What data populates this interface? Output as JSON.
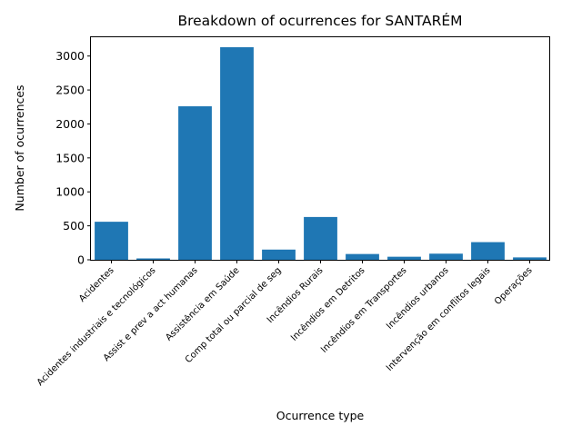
{
  "chart_data": {
    "type": "bar",
    "title": "Breakdown of ocurrences for SANTARÉM",
    "xlabel": "Ocurrence type",
    "ylabel": "Number of ocurrences",
    "categories": [
      "Acidentes",
      "Acidentes industriais e tecnológicos",
      "Assist e prev a act humanas",
      "Assistência em Saúde",
      "Comp total ou parcial de seg",
      "Incêndios Rurais",
      "Incêndios em Detritos",
      "Incêndios em Transportes",
      "Incêndios urbanos",
      "Intervenção em conflitos legais",
      "Operações"
    ],
    "values": [
      560,
      20,
      2260,
      3130,
      150,
      630,
      85,
      45,
      90,
      260,
      35
    ],
    "ylim": [
      0,
      3290
    ],
    "yticks": [
      0,
      500,
      1000,
      1500,
      2000,
      2500,
      3000
    ],
    "bar_color": "#1f77b4",
    "grid": false,
    "legend": "none"
  }
}
